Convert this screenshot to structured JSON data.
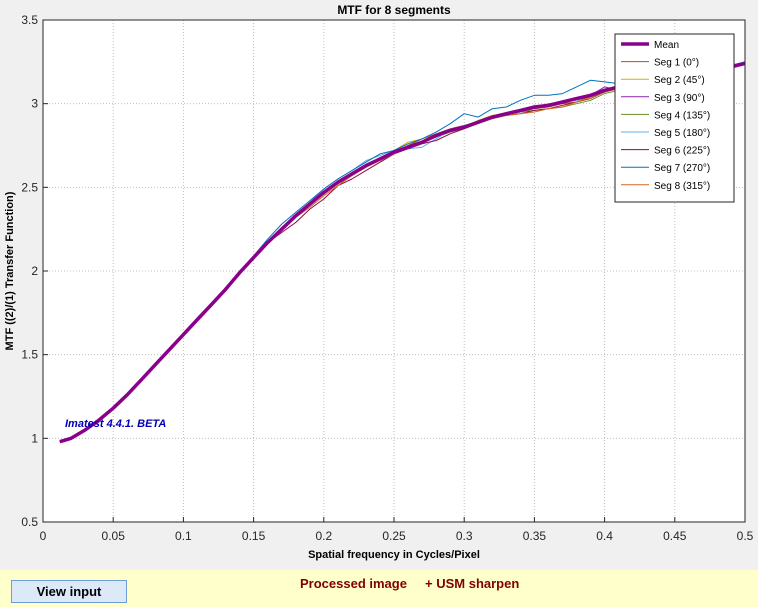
{
  "chart_data": {
    "type": "line",
    "title": "MTF for 8 segments",
    "xlabel": "Spatial frequency in Cycles/Pixel",
    "ylabel": "MTF  ((2)/(1) Transfer Function)",
    "xlim": [
      0,
      0.5
    ],
    "ylim": [
      0.5,
      3.5
    ],
    "xticks": [
      "0",
      "0.05",
      "0.1",
      "0.15",
      "0.2",
      "0.25",
      "0.3",
      "0.35",
      "0.4",
      "0.45",
      "0.5"
    ],
    "yticks": [
      "0.5",
      "1",
      "1.5",
      "2",
      "2.5",
      "3",
      "3.5"
    ],
    "grid": true,
    "legend_position": "top-right",
    "annotation": "Imatest 4.4.1. BETA",
    "x": [
      0.012,
      0.02,
      0.03,
      0.04,
      0.05,
      0.06,
      0.07,
      0.08,
      0.09,
      0.1,
      0.11,
      0.12,
      0.13,
      0.14,
      0.15,
      0.16,
      0.17,
      0.18,
      0.19,
      0.2,
      0.21,
      0.22,
      0.23,
      0.24,
      0.25,
      0.26,
      0.27,
      0.28,
      0.29,
      0.3,
      0.31,
      0.32,
      0.33,
      0.34,
      0.35,
      0.36,
      0.37,
      0.38,
      0.39,
      0.4,
      0.41,
      0.42,
      0.43,
      0.44,
      0.45,
      0.46,
      0.47,
      0.48,
      0.49,
      0.5
    ],
    "series": [
      {
        "name": "Mean",
        "color": "#8b008b",
        "width": 3.5,
        "values": [
          0.98,
          1.0,
          1.05,
          1.11,
          1.18,
          1.26,
          1.35,
          1.44,
          1.53,
          1.62,
          1.71,
          1.8,
          1.89,
          1.99,
          2.08,
          2.17,
          2.25,
          2.33,
          2.4,
          2.47,
          2.53,
          2.58,
          2.63,
          2.67,
          2.71,
          2.74,
          2.77,
          2.81,
          2.84,
          2.86,
          2.89,
          2.92,
          2.94,
          2.96,
          2.98,
          2.99,
          3.01,
          3.03,
          3.05,
          3.08,
          3.1,
          3.13,
          3.15,
          3.17,
          3.18,
          3.19,
          3.2,
          3.21,
          3.22,
          3.24
        ]
      },
      {
        "name": "Seg 1 (0°)",
        "color": "#a0522d",
        "width": 1,
        "values": [
          0.98,
          1.0,
          1.05,
          1.11,
          1.18,
          1.26,
          1.35,
          1.44,
          1.53,
          1.62,
          1.71,
          1.8,
          1.89,
          1.99,
          2.08,
          2.17,
          2.25,
          2.33,
          2.4,
          2.46,
          2.52,
          2.57,
          2.62,
          2.67,
          2.71,
          2.75,
          2.79,
          2.82,
          2.85,
          2.87,
          2.89,
          2.91,
          2.93,
          2.95,
          2.97,
          2.98,
          3.0,
          3.01,
          3.03,
          3.07,
          3.09,
          3.11,
          3.13,
          3.16,
          3.17,
          3.18,
          3.2,
          3.21,
          3.22,
          3.24
        ]
      },
      {
        "name": "Seg 2 (45°)",
        "color": "#c8b400",
        "width": 1,
        "values": [
          0.98,
          1.0,
          1.05,
          1.11,
          1.18,
          1.26,
          1.35,
          1.44,
          1.53,
          1.62,
          1.71,
          1.8,
          1.89,
          1.99,
          2.08,
          2.17,
          2.25,
          2.33,
          2.4,
          2.47,
          2.53,
          2.58,
          2.63,
          2.67,
          2.72,
          2.77,
          2.79,
          2.81,
          2.84,
          2.86,
          2.9,
          2.93,
          2.94,
          2.96,
          2.98,
          2.99,
          3.01,
          3.03,
          3.05,
          3.08,
          3.1,
          3.13,
          3.15,
          3.17,
          3.18,
          3.19,
          3.2,
          3.21,
          3.22,
          3.24
        ]
      },
      {
        "name": "Seg 3 (90°)",
        "color": "#8e24aa",
        "width": 1,
        "values": [
          0.98,
          1.0,
          1.05,
          1.11,
          1.18,
          1.26,
          1.35,
          1.44,
          1.53,
          1.62,
          1.71,
          1.8,
          1.89,
          1.99,
          2.08,
          2.17,
          2.25,
          2.33,
          2.4,
          2.47,
          2.53,
          2.58,
          2.63,
          2.67,
          2.71,
          2.74,
          2.77,
          2.81,
          2.84,
          2.86,
          2.89,
          2.92,
          2.94,
          2.96,
          2.98,
          2.99,
          3.01,
          3.03,
          3.05,
          3.1,
          3.08,
          3.13,
          3.15,
          3.17,
          3.18,
          3.19,
          3.2,
          3.21,
          3.22,
          3.25
        ]
      },
      {
        "name": "Seg 4 (135°)",
        "color": "#6b8e23",
        "width": 1,
        "values": [
          0.98,
          1.0,
          1.05,
          1.11,
          1.18,
          1.26,
          1.35,
          1.44,
          1.53,
          1.62,
          1.71,
          1.8,
          1.89,
          1.99,
          2.08,
          2.17,
          2.25,
          2.33,
          2.4,
          2.47,
          2.53,
          2.58,
          2.63,
          2.67,
          2.71,
          2.74,
          2.77,
          2.8,
          2.83,
          2.85,
          2.88,
          2.91,
          2.93,
          2.95,
          2.96,
          2.97,
          2.98,
          3.0,
          3.02,
          3.06,
          3.08,
          3.11,
          3.14,
          3.16,
          3.18,
          3.19,
          3.2,
          3.21,
          3.22,
          3.24
        ]
      },
      {
        "name": "Seg 5 (180°)",
        "color": "#5fb3e8",
        "width": 1,
        "values": [
          0.98,
          1.0,
          1.05,
          1.11,
          1.18,
          1.26,
          1.35,
          1.44,
          1.53,
          1.62,
          1.71,
          1.8,
          1.89,
          1.99,
          2.08,
          2.17,
          2.25,
          2.34,
          2.41,
          2.49,
          2.55,
          2.6,
          2.66,
          2.69,
          2.72,
          2.73,
          2.74,
          2.79,
          2.84,
          2.87,
          2.89,
          2.91,
          2.93,
          2.95,
          2.98,
          3.0,
          3.01,
          3.02,
          3.04,
          3.08,
          3.1,
          3.13,
          3.15,
          3.17,
          3.18,
          3.19,
          3.2,
          3.21,
          3.22,
          3.24
        ]
      },
      {
        "name": "Seg 6 (225°)",
        "color": "#8b0a3c",
        "width": 1,
        "values": [
          0.98,
          1.0,
          1.05,
          1.11,
          1.18,
          1.26,
          1.35,
          1.44,
          1.53,
          1.62,
          1.71,
          1.8,
          1.89,
          1.99,
          2.08,
          2.17,
          2.23,
          2.29,
          2.37,
          2.43,
          2.51,
          2.55,
          2.6,
          2.65,
          2.7,
          2.73,
          2.76,
          2.78,
          2.82,
          2.85,
          2.89,
          2.92,
          2.93,
          2.94,
          2.96,
          2.97,
          2.99,
          3.01,
          3.04,
          3.08,
          3.1,
          3.12,
          3.14,
          3.16,
          3.17,
          3.19,
          3.2,
          3.21,
          3.22,
          3.24
        ]
      },
      {
        "name": "Seg 7 (270°)",
        "color": "#0072bd",
        "width": 1,
        "values": [
          0.98,
          1.0,
          1.05,
          1.11,
          1.18,
          1.26,
          1.35,
          1.44,
          1.53,
          1.62,
          1.71,
          1.8,
          1.9,
          1.99,
          2.09,
          2.19,
          2.28,
          2.35,
          2.42,
          2.49,
          2.55,
          2.6,
          2.65,
          2.7,
          2.72,
          2.76,
          2.79,
          2.83,
          2.88,
          2.94,
          2.92,
          2.97,
          2.98,
          3.02,
          3.05,
          3.05,
          3.06,
          3.1,
          3.14,
          3.13,
          3.12,
          3.13,
          3.16,
          3.18,
          3.19,
          3.2,
          3.21,
          3.22,
          3.23,
          3.25
        ]
      },
      {
        "name": "Seg 8 (315°)",
        "color": "#d2691e",
        "width": 1,
        "values": [
          0.98,
          1.0,
          1.05,
          1.11,
          1.18,
          1.26,
          1.35,
          1.44,
          1.53,
          1.62,
          1.71,
          1.8,
          1.89,
          1.99,
          2.08,
          2.17,
          2.24,
          2.32,
          2.38,
          2.45,
          2.51,
          2.57,
          2.62,
          2.66,
          2.7,
          2.74,
          2.77,
          2.81,
          2.84,
          2.86,
          2.89,
          2.91,
          2.93,
          2.94,
          2.95,
          2.97,
          2.98,
          3.01,
          3.04,
          3.07,
          3.09,
          3.12,
          3.14,
          3.16,
          3.18,
          3.19,
          3.2,
          3.21,
          3.22,
          3.24
        ]
      }
    ]
  },
  "footer": {
    "view_button_label": "View input",
    "status_text": "Processed image     + USM sharpen"
  }
}
